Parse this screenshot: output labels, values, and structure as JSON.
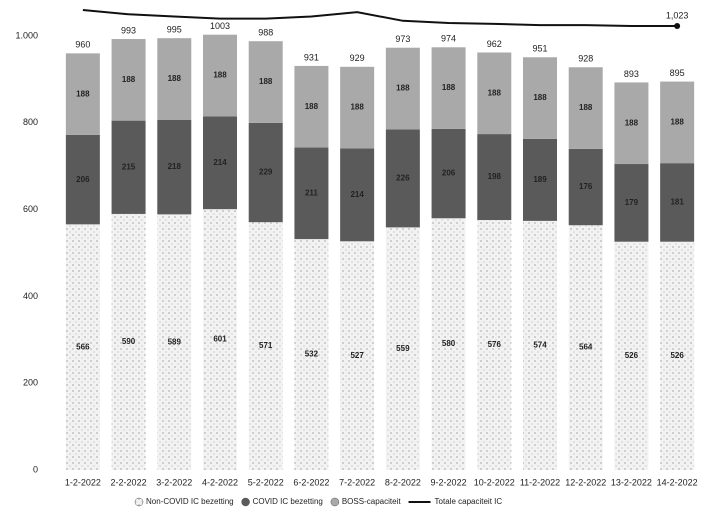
{
  "chart_data": {
    "type": "stacked-bar-line",
    "categories": [
      "1-2-2022",
      "2-2-2022",
      "3-2-2022",
      "4-2-2022",
      "5-2-2022",
      "6-2-2022",
      "7-2-2022",
      "8-2-2022",
      "9-2-2022",
      "10-2-2022",
      "11-2-2022",
      "12-2-2022",
      "13-2-2022",
      "14-2-2022"
    ],
    "series": [
      {
        "name": "Non-COVID IC bezetting",
        "color": "#f2f2f2",
        "values": [
          566,
          590,
          589,
          601,
          571,
          532,
          527,
          559,
          580,
          576,
          574,
          564,
          526,
          526
        ]
      },
      {
        "name": "COVID IC bezetting",
        "color": "#5a5a5a",
        "values": [
          206,
          215,
          218,
          214,
          229,
          211,
          214,
          226,
          206,
          198,
          189,
          176,
          179,
          181
        ]
      },
      {
        "name": "BOSS-capaciteit",
        "color": "#a9a9a9",
        "values": [
          188,
          188,
          188,
          188,
          188,
          188,
          188,
          188,
          188,
          188,
          188,
          188,
          188,
          188
        ]
      },
      {
        "name": "Totale capaciteit IC",
        "color": "#111111",
        "type": "line",
        "values": [
          1060,
          1050,
          1045,
          1040,
          1040,
          1045,
          1055,
          1035,
          1030,
          1028,
          1025,
          1025,
          1023,
          1023
        ],
        "value_labels": [
          null,
          null,
          null,
          null,
          null,
          null,
          null,
          null,
          null,
          null,
          null,
          null,
          null,
          "1,023"
        ]
      }
    ],
    "totals": [
      960,
      993,
      995,
      1003,
      988,
      931,
      929,
      973,
      974,
      962,
      951,
      928,
      893,
      895
    ],
    "ylim": [
      0,
      1080
    ],
    "yticks": [
      0,
      200,
      400,
      600,
      800,
      {
        "value": 1000,
        "label": "1.000"
      }
    ],
    "grid": false
  }
}
